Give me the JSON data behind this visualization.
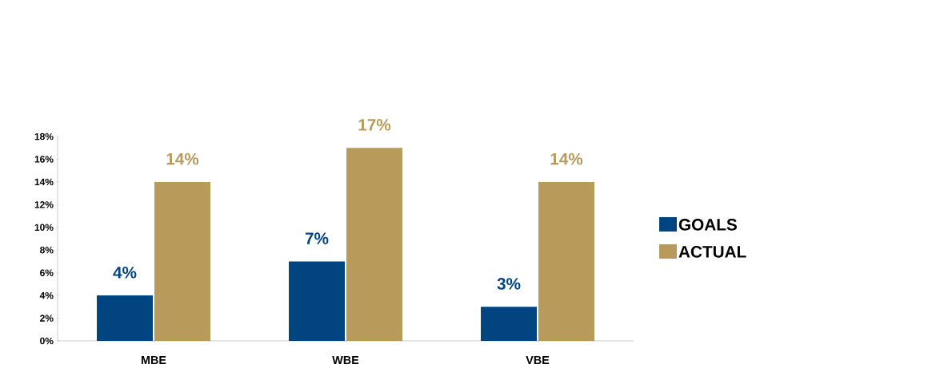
{
  "chart_data": {
    "type": "bar",
    "categories": [
      "MBE",
      "WBE",
      "VBE"
    ],
    "series": [
      {
        "name": "GOALS",
        "color": "#02447f",
        "values": [
          4,
          7,
          3
        ],
        "value_labels": [
          "4%",
          "7%",
          "3%"
        ]
      },
      {
        "name": "ACTUAL",
        "color": "#b89a5a",
        "values": [
          14,
          17,
          14
        ],
        "value_labels": [
          "14%",
          "17%",
          "14%"
        ]
      }
    ],
    "ylim": [
      0,
      18
    ],
    "yticks": [
      {
        "value": 0,
        "label": "0%"
      },
      {
        "value": 2,
        "label": "2%"
      },
      {
        "value": 4,
        "label": "4%"
      },
      {
        "value": 6,
        "label": "6%"
      },
      {
        "value": 8,
        "label": "8%"
      },
      {
        "value": 10,
        "label": "10%"
      },
      {
        "value": 12,
        "label": "12%"
      },
      {
        "value": 14,
        "label": "14%"
      },
      {
        "value": 16,
        "label": "16%"
      },
      {
        "value": 18,
        "label": "18%"
      }
    ],
    "grid": false,
    "legend": "right"
  }
}
